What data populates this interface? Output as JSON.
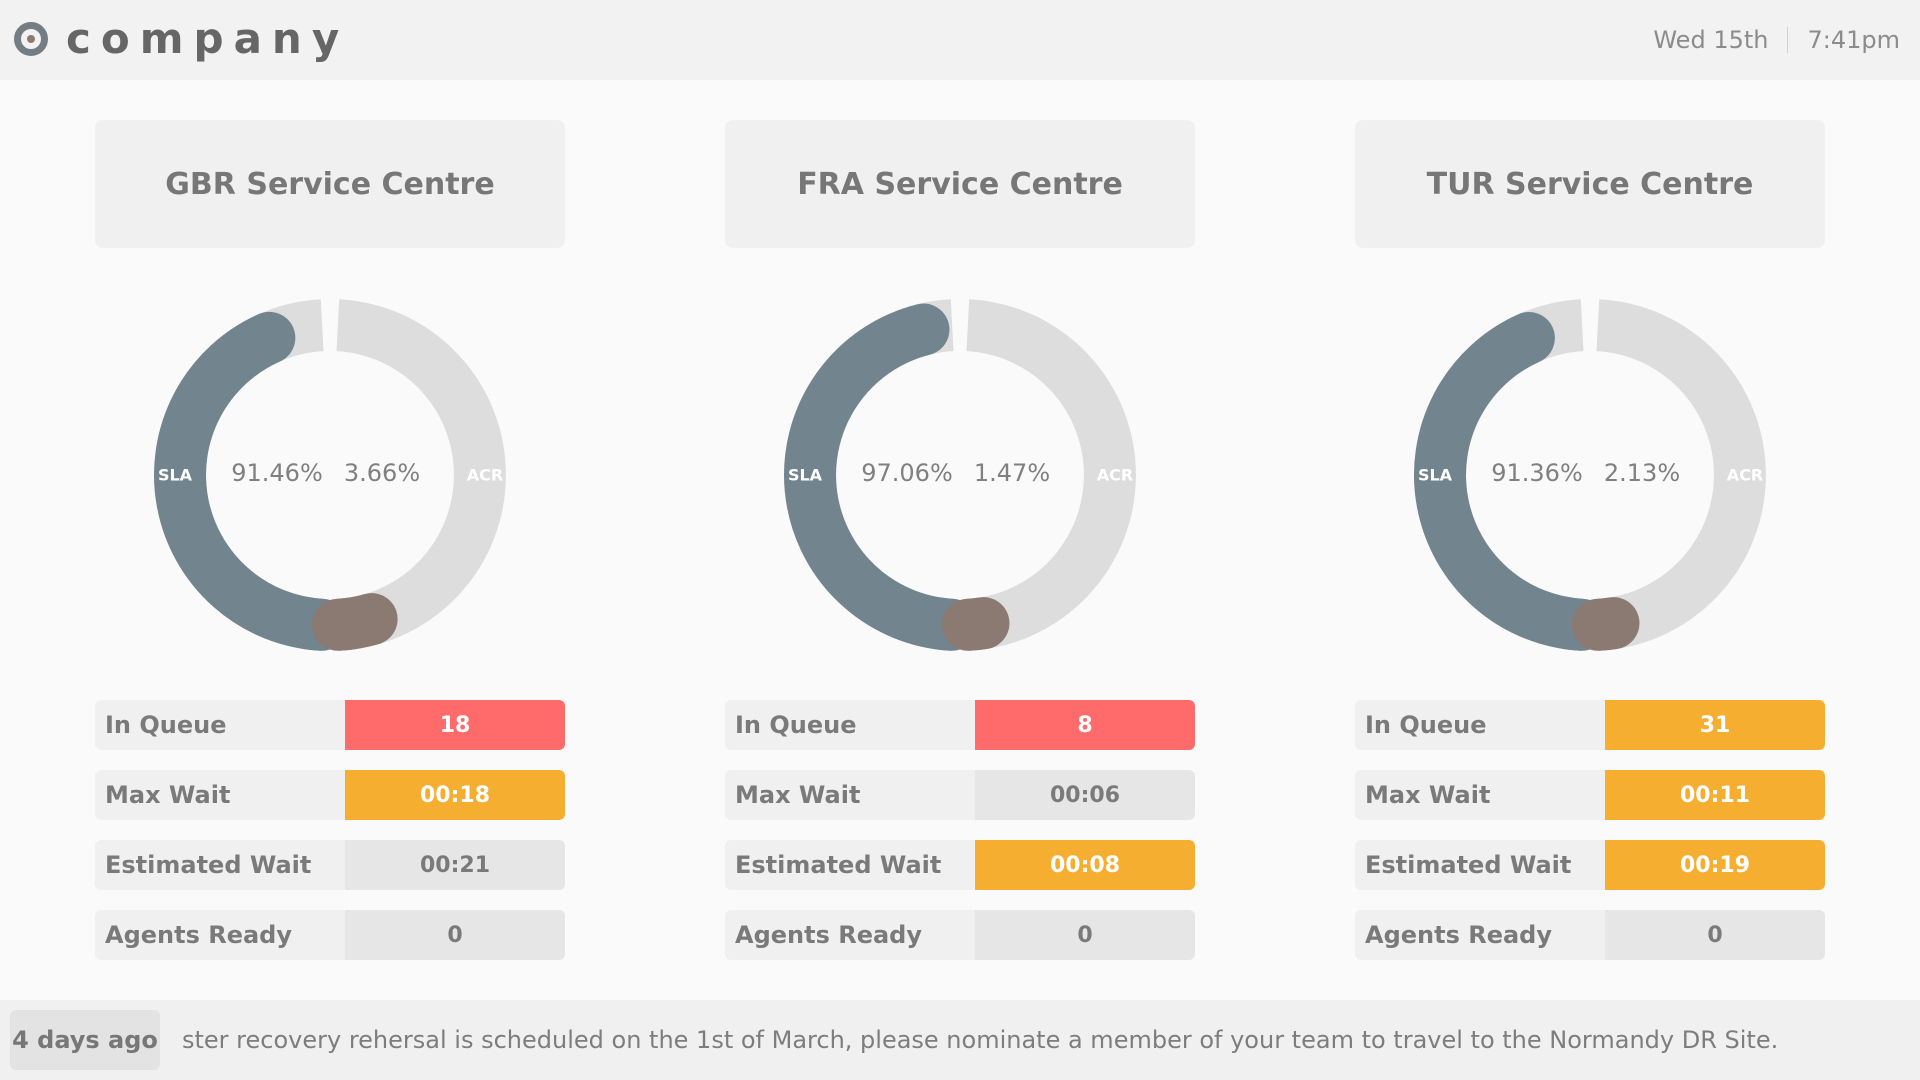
{
  "brand": {
    "name": "company",
    "icon": "company-logo-icon"
  },
  "clock": {
    "date": "Wed 15th",
    "time": "7:41pm"
  },
  "centres": [
    {
      "title": "GBR Service Centre",
      "sla_label": "SLA",
      "acr_label": "ACR",
      "sla_value": "91.46%",
      "acr_value": "3.66%",
      "sla": 91.46,
      "acr": 3.66,
      "stats": [
        {
          "label": "In Queue",
          "value": "18",
          "status": "red"
        },
        {
          "label": "Max Wait",
          "value": "00:18",
          "status": "amber"
        },
        {
          "label": "Estimated Wait",
          "value": "00:21",
          "status": "grey"
        },
        {
          "label": "Agents Ready",
          "value": "0",
          "status": "grey"
        }
      ]
    },
    {
      "title": "FRA Service Centre",
      "sla_label": "SLA",
      "acr_label": "ACR",
      "sla_value": "97.06%",
      "acr_value": "1.47%",
      "sla": 97.06,
      "acr": 1.47,
      "stats": [
        {
          "label": "In Queue",
          "value": "8",
          "status": "red"
        },
        {
          "label": "Max Wait",
          "value": "00:06",
          "status": "grey"
        },
        {
          "label": "Estimated Wait",
          "value": "00:08",
          "status": "amber"
        },
        {
          "label": "Agents Ready",
          "value": "0",
          "status": "grey"
        }
      ]
    },
    {
      "title": "TUR Service Centre",
      "sla_label": "SLA",
      "acr_label": "ACR",
      "sla_value": "91.36%",
      "acr_value": "2.13%",
      "sla": 91.36,
      "acr": 2.13,
      "stats": [
        {
          "label": "In Queue",
          "value": "31",
          "status": "amber"
        },
        {
          "label": "Max Wait",
          "value": "00:11",
          "status": "amber"
        },
        {
          "label": "Estimated Wait",
          "value": "00:19",
          "status": "amber"
        },
        {
          "label": "Agents Ready",
          "value": "0",
          "status": "grey"
        }
      ]
    }
  ],
  "footer": {
    "age": "4 days ago",
    "message": "ster recovery rehersal is scheduled on the 1st of March, please nominate a member of your team to travel to the Normandy DR Site."
  },
  "colors": {
    "sla_arc": "#72848e",
    "acr_arc": "#8a7a72",
    "track": "#dddddd",
    "red": "#ff6b6b",
    "amber": "#f5ae30"
  }
}
